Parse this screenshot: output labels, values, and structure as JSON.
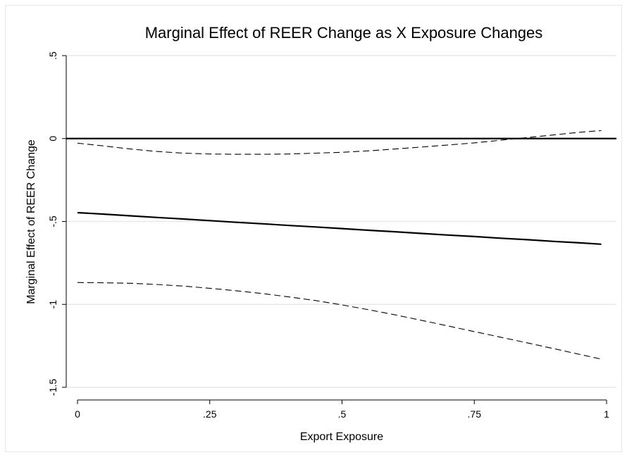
{
  "chart_data": {
    "type": "line",
    "title": "Marginal Effect of REER Change as X Exposure Changes",
    "xlabel": "Export Exposure",
    "ylabel": "Marginal Effect of REER Change",
    "xlim": [
      0,
      1
    ],
    "ylim": [
      -1.5,
      0.5
    ],
    "xticks": [
      0,
      0.25,
      0.5,
      0.75,
      1
    ],
    "xtick_labels": [
      "0",
      ".25",
      ".5",
      ".75",
      "1"
    ],
    "yticks": [
      -1.5,
      -1,
      -0.5,
      0,
      0.5
    ],
    "ytick_labels": [
      "-1.5",
      "-1",
      "-.5",
      "0",
      ".5"
    ],
    "grid": true,
    "reference_line": 0,
    "x": [
      0,
      0.05,
      0.1,
      0.15,
      0.2,
      0.25,
      0.3,
      0.35,
      0.4,
      0.45,
      0.5,
      0.55,
      0.6,
      0.65,
      0.7,
      0.75,
      0.8,
      0.85,
      0.9,
      0.95,
      0.99
    ],
    "series": [
      {
        "style": "solid",
        "values": [
          -0.447,
          -0.456,
          -0.466,
          -0.476,
          -0.485,
          -0.495,
          -0.505,
          -0.514,
          -0.524,
          -0.533,
          -0.543,
          -0.553,
          -0.562,
          -0.572,
          -0.582,
          -0.591,
          -0.601,
          -0.61,
          -0.62,
          -0.629,
          -0.637
        ]
      },
      {
        "style": "dashed",
        "values": [
          -0.028,
          -0.045,
          -0.063,
          -0.078,
          -0.088,
          -0.093,
          -0.095,
          -0.095,
          -0.093,
          -0.088,
          -0.083,
          -0.074,
          -0.063,
          -0.051,
          -0.039,
          -0.026,
          -0.01,
          0.006,
          0.022,
          0.038,
          0.048
        ]
      },
      {
        "style": "dashed",
        "values": [
          -0.868,
          -0.87,
          -0.873,
          -0.88,
          -0.89,
          -0.903,
          -0.918,
          -0.935,
          -0.955,
          -0.977,
          -1.003,
          -1.032,
          -1.063,
          -1.096,
          -1.13,
          -1.164,
          -1.198,
          -1.232,
          -1.267,
          -1.302,
          -1.33
        ]
      }
    ]
  }
}
